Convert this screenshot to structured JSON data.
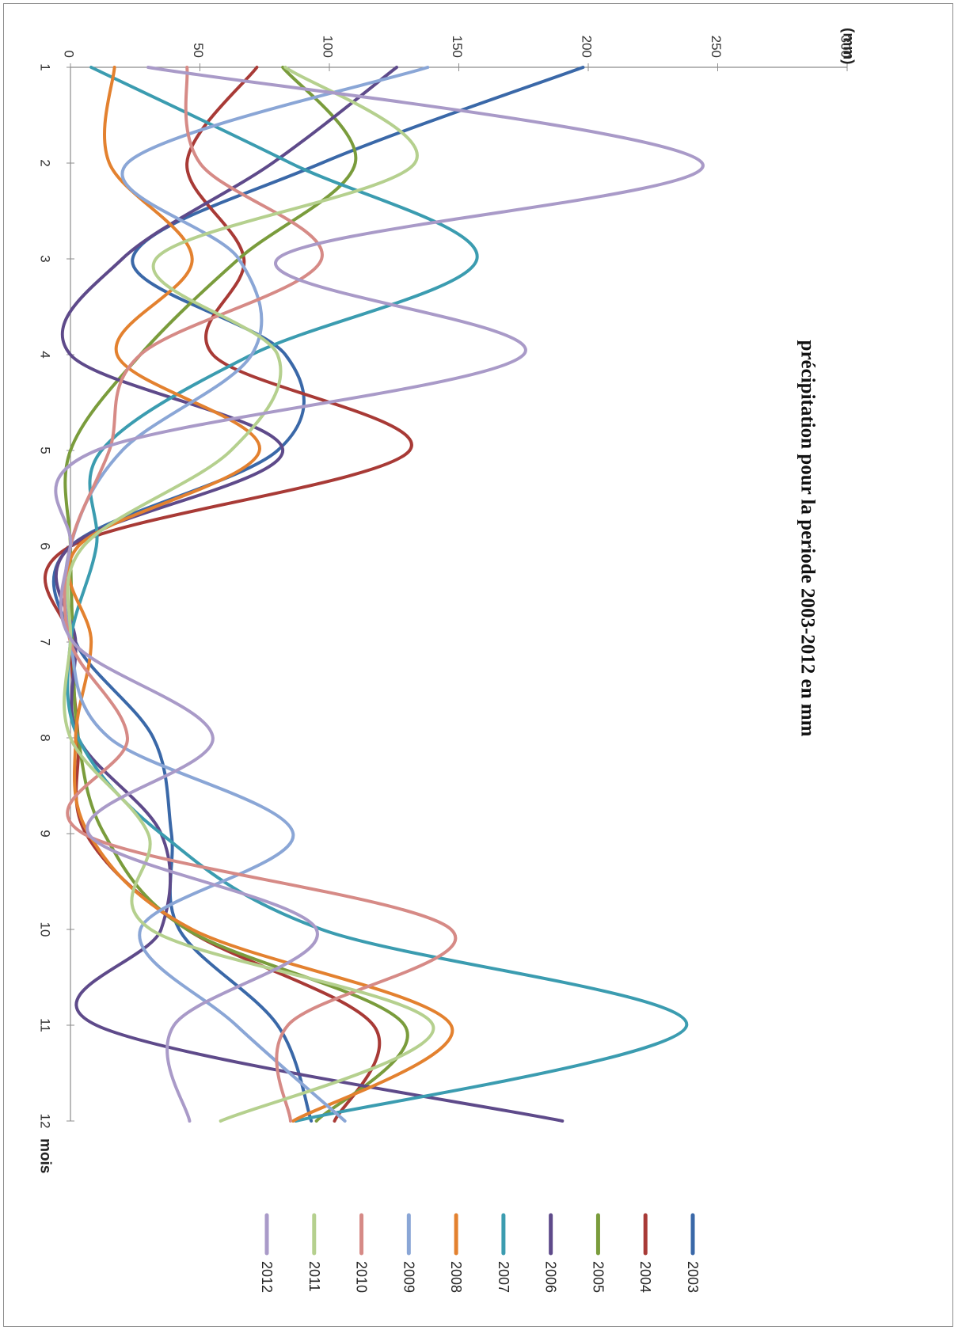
{
  "chart_data": {
    "type": "line",
    "title": "précipitation pour la periode 2003-2012 en mm",
    "ylabel": "(mm)",
    "xlabel": "mois",
    "x": [
      1,
      2,
      3,
      4,
      5,
      6,
      7,
      8,
      9,
      10,
      11,
      12
    ],
    "x_tick_labels": [
      "1",
      "2",
      "3",
      "4",
      "5",
      "6",
      "7",
      "8",
      "9",
      "10",
      "11",
      "12"
    ],
    "ylim": [
      0,
      300
    ],
    "y_ticks": [
      0,
      50,
      100,
      150,
      200,
      250,
      300
    ],
    "y_tick_labels": [
      "0",
      "50",
      "100",
      "150",
      "200",
      "250",
      "300"
    ],
    "grid": false,
    "orientation": "rotated-90-clockwise",
    "legend_position": "right",
    "series": [
      {
        "name": "2003",
        "color": "#3a68a8",
        "values": [
          198,
          97,
          24,
          83,
          80,
          0,
          2,
          32,
          39,
          42,
          80,
          93
        ]
      },
      {
        "name": "2004",
        "color": "#a83a36",
        "values": [
          72,
          45,
          67,
          55,
          131,
          0,
          0,
          3,
          6,
          45,
          117,
          102
        ]
      },
      {
        "name": "2005",
        "color": "#7a9c3c",
        "values": [
          82,
          110,
          65,
          27,
          0,
          0,
          1,
          3,
          13,
          45,
          129,
          95
        ]
      },
      {
        "name": "2006",
        "color": "#5e4a8a",
        "values": [
          126,
          78,
          20,
          0,
          82,
          0,
          2,
          3,
          35,
          35,
          10,
          190
        ]
      },
      {
        "name": "2007",
        "color": "#3b9cb0",
        "values": [
          8,
          85,
          157,
          70,
          12,
          10,
          0,
          3,
          35,
          97,
          238,
          87
        ]
      },
      {
        "name": "2008",
        "color": "#e3812f",
        "values": [
          17,
          15,
          47,
          18,
          73,
          3,
          8,
          2,
          7,
          47,
          147,
          86
        ]
      },
      {
        "name": "2009",
        "color": "#8aa6d6",
        "values": [
          138,
          22,
          65,
          70,
          20,
          0,
          0,
          15,
          86,
          27,
          64,
          106
        ]
      },
      {
        "name": "2010",
        "color": "#d68a86",
        "values": [
          45,
          50,
          97,
          27,
          15,
          0,
          0,
          22,
          5,
          147,
          84,
          85
        ]
      },
      {
        "name": "2011",
        "color": "#b5d08e",
        "values": [
          83,
          133,
          33,
          80,
          62,
          5,
          0,
          0,
          30,
          31,
          140,
          58
        ]
      },
      {
        "name": "2012",
        "color": "#a99ac8",
        "values": [
          30,
          244,
          80,
          175,
          10,
          0,
          1,
          55,
          7,
          95,
          40,
          46
        ]
      }
    ]
  }
}
